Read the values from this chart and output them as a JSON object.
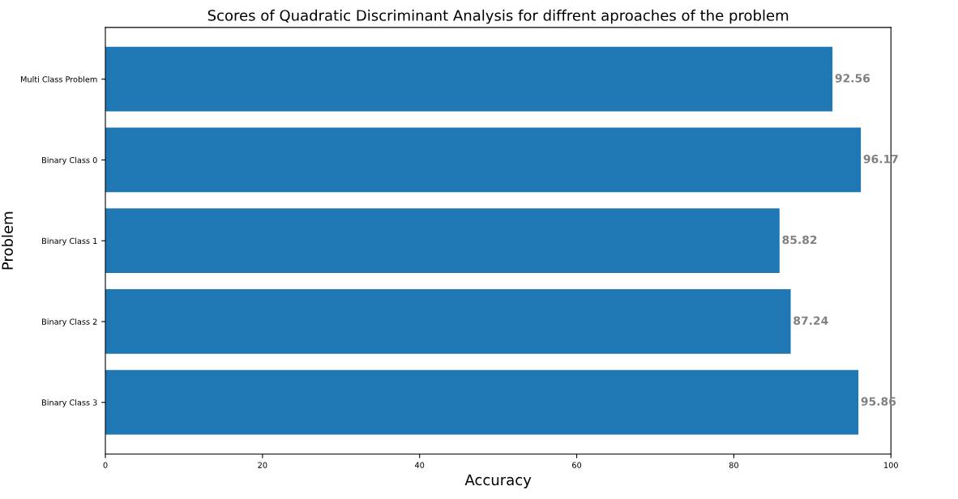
{
  "chart_data": {
    "type": "bar",
    "orientation": "horizontal",
    "title": "Scores of Quadratic Discriminant Analysis for diffrent aproaches of the problem",
    "xlabel": "Accuracy",
    "ylabel": "Problem",
    "categories": [
      "Multi Class Problem",
      "Binary Class 0",
      "Binary Class 1",
      "Binary Class 2",
      "Binary Class 3"
    ],
    "values": [
      92.56,
      96.17,
      85.82,
      87.24,
      95.86
    ],
    "color": "#1f77b4",
    "data_labels": true,
    "xlim": [
      0,
      100
    ],
    "xticks": [
      0,
      20,
      40,
      60,
      80,
      100
    ],
    "grid": false,
    "legend": false
  }
}
